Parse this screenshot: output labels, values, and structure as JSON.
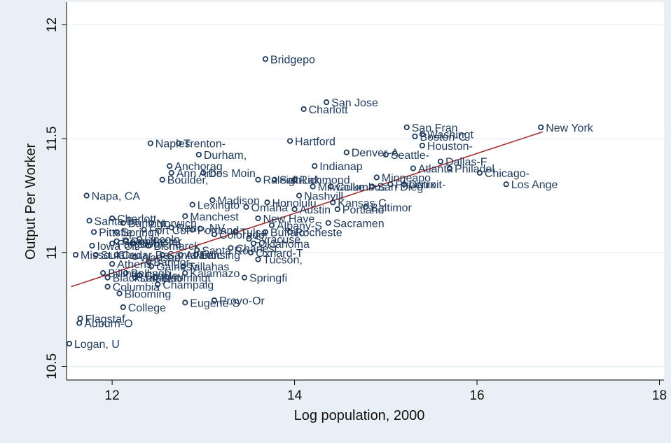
{
  "chart_data": {
    "type": "scatter",
    "title": "",
    "xlabel": "Log population, 2000",
    "ylabel": "Output Per Worker",
    "xlim": [
      11.5,
      18.05
    ],
    "ylim": [
      10.44,
      12.1
    ],
    "xticks": [
      12,
      14,
      16,
      18
    ],
    "yticks": [
      10.5,
      11,
      11.5,
      12
    ],
    "xtick_labels": [
      "12",
      "14",
      "16",
      "18"
    ],
    "ytick_labels": [
      "10.5",
      "11",
      "11.5",
      "12"
    ],
    "grid": "horizontal",
    "legend": "none",
    "colors": {
      "background": "#e9f0f5",
      "plot_area": "#ffffff",
      "grid": "#e6eef4",
      "marker": "#1f3a5c",
      "label": "#1f3a5c",
      "fit_line": "#a23131"
    },
    "fit_line": {
      "x": [
        11.55,
        16.72
      ],
      "y": [
        10.85,
        11.53
      ]
    },
    "points": [
      {
        "label": "New York",
        "x": 16.7,
        "y": 11.55
      },
      {
        "label": "Los Ange",
        "x": 16.32,
        "y": 11.3
      },
      {
        "label": "Chicago-",
        "x": 16.03,
        "y": 11.35
      },
      {
        "label": "Philadel",
        "x": 15.7,
        "y": 11.37
      },
      {
        "label": "Dallas-F",
        "x": 15.6,
        "y": 11.4
      },
      {
        "label": "Houston-",
        "x": 15.4,
        "y": 11.47
      },
      {
        "label": "Washingt",
        "x": 15.4,
        "y": 11.52
      },
      {
        "label": "Boston-C",
        "x": 15.32,
        "y": 11.51
      },
      {
        "label": "San Fran",
        "x": 15.23,
        "y": 11.55
      },
      {
        "label": "Atlanta",
        "x": 15.3,
        "y": 11.37
      },
      {
        "label": "Detroit-",
        "x": 15.2,
        "y": 11.3
      },
      {
        "label": "Phoenix",
        "x": 15.05,
        "y": 11.3
      },
      {
        "label": "Seattle-",
        "x": 15.0,
        "y": 11.43
      },
      {
        "label": "Minneapo",
        "x": 14.9,
        "y": 11.33
      },
      {
        "label": "San Dieg",
        "x": 14.85,
        "y": 11.29
      },
      {
        "label": "Denver-A",
        "x": 14.57,
        "y": 11.44
      },
      {
        "label": "Baltimor",
        "x": 14.78,
        "y": 11.2
      },
      {
        "label": "Kansas C",
        "x": 14.42,
        "y": 11.22
      },
      {
        "label": "Portland",
        "x": 14.47,
        "y": 11.19
      },
      {
        "label": "Sacramen",
        "x": 14.37,
        "y": 11.13
      },
      {
        "label": "San Jose",
        "x": 14.35,
        "y": 11.66
      },
      {
        "label": "Charlott",
        "x": 14.1,
        "y": 11.63
      },
      {
        "label": "Bridgepo",
        "x": 13.68,
        "y": 11.85
      },
      {
        "label": "Hartford",
        "x": 13.95,
        "y": 11.49
      },
      {
        "label": "Indianap",
        "x": 14.22,
        "y": 11.38
      },
      {
        "label": "Columbus",
        "x": 14.4,
        "y": 11.29
      },
      {
        "label": "Milwauke",
        "x": 14.2,
        "y": 11.29
      },
      {
        "label": "Richmond",
        "x": 14.0,
        "y": 11.32
      },
      {
        "label": "Salt Lak",
        "x": 13.78,
        "y": 11.32
      },
      {
        "label": "Nashvill",
        "x": 14.05,
        "y": 11.25
      },
      {
        "label": "Raleigh",
        "x": 13.6,
        "y": 11.32
      },
      {
        "label": "Austin",
        "x": 14.0,
        "y": 11.19
      },
      {
        "label": "Honolulu",
        "x": 13.7,
        "y": 11.22
      },
      {
        "label": "Omaha",
        "x": 13.47,
        "y": 11.2
      },
      {
        "label": "Madison",
        "x": 13.1,
        "y": 11.23
      },
      {
        "label": "New Have",
        "x": 13.6,
        "y": 11.15
      },
      {
        "label": "Albany-S",
        "x": 13.75,
        "y": 11.12
      },
      {
        "label": "Rocheste",
        "x": 13.95,
        "y": 11.09
      },
      {
        "label": "Buffalo",
        "x": 13.68,
        "y": 11.09
      },
      {
        "label": "Syracuse",
        "x": 13.5,
        "y": 11.06
      },
      {
        "label": "Tulsa",
        "x": 13.35,
        "y": 11.09
      },
      {
        "label": "Oklahoma",
        "x": 13.55,
        "y": 11.04
      },
      {
        "label": "Charlest",
        "x": 13.3,
        "y": 11.02
      },
      {
        "label": "Oxnard-T",
        "x": 13.52,
        "y": 11.0
      },
      {
        "label": "Tucson,",
        "x": 13.6,
        "y": 10.97
      },
      {
        "label": "Springfi",
        "x": 13.45,
        "y": 10.89
      },
      {
        "label": "Provo-Or",
        "x": 13.12,
        "y": 10.79
      },
      {
        "label": "Eugene-S",
        "x": 12.8,
        "y": 10.78
      },
      {
        "label": "Lansing",
        "x": 12.92,
        "y": 10.99
      },
      {
        "label": "Santa Ro",
        "x": 12.93,
        "y": 11.01
      },
      {
        "label": "Kalamazo",
        "x": 12.8,
        "y": 10.91
      },
      {
        "label": "Tallahas",
        "x": 12.78,
        "y": 10.94
      },
      {
        "label": "Champaig",
        "x": 12.5,
        "y": 10.86
      },
      {
        "label": "Bloomingt",
        "x": 12.48,
        "y": 10.89
      },
      {
        "label": "Blooming",
        "x": 12.08,
        "y": 10.82
      },
      {
        "label": "Columbia",
        "x": 11.95,
        "y": 10.85
      },
      {
        "label": "College",
        "x": 12.12,
        "y": 10.76
      },
      {
        "label": "Flagstaf",
        "x": 11.65,
        "y": 10.71
      },
      {
        "label": "Auburn-O",
        "x": 11.64,
        "y": 10.69
      },
      {
        "label": "Logan, U",
        "x": 11.53,
        "y": 10.6
      },
      {
        "label": "Napa, CA",
        "x": 11.72,
        "y": 11.25
      },
      {
        "label": "Naples",
        "x": 12.42,
        "y": 11.48
      },
      {
        "label": "Trenton-",
        "x": 12.73,
        "y": 11.48
      },
      {
        "label": "Durham,",
        "x": 12.95,
        "y": 11.43
      },
      {
        "label": "Anchorag",
        "x": 12.63,
        "y": 11.38
      },
      {
        "label": "Ann Arbo",
        "x": 12.65,
        "y": 11.35
      },
      {
        "label": "Des Moin",
        "x": 13.0,
        "y": 11.35
      },
      {
        "label": "Boulder,",
        "x": 12.55,
        "y": 11.32
      },
      {
        "label": "Lexingto",
        "x": 12.88,
        "y": 11.21
      },
      {
        "label": "Manchest",
        "x": 12.8,
        "y": 11.16
      },
      {
        "label": "Charlott",
        "x": 12.0,
        "y": 11.15
      },
      {
        "label": "Santa Ba",
        "x": 11.75,
        "y": 11.14
      },
      {
        "label": "Burlingt",
        "x": 12.12,
        "y": 11.13
      },
      {
        "label": "Norwich",
        "x": 12.43,
        "y": 11.13
      },
      {
        "label": "Pittsfie",
        "x": 11.8,
        "y": 11.09
      },
      {
        "label": "Springfi",
        "x": 12.05,
        "y": 11.09
      },
      {
        "label": "Reno, NV",
        "x": 12.65,
        "y": 11.11
      },
      {
        "label": "Fort Col",
        "x": 12.35,
        "y": 11.1
      },
      {
        "label": "Portland",
        "x": 12.88,
        "y": 11.1
      },
      {
        "label": "Colorado",
        "x": 13.12,
        "y": 11.08
      },
      {
        "label": "Lincoln",
        "x": 12.3,
        "y": 11.06
      },
      {
        "label": "Roanoke",
        "x": 12.05,
        "y": 11.05
      },
      {
        "label": "Iowa Cit",
        "x": 11.78,
        "y": 11.03
      },
      {
        "label": "Fargo",
        "x": 12.0,
        "y": 11.04
      },
      {
        "label": "Rochester",
        "x": 12.15,
        "y": 11.05
      },
      {
        "label": "Sioux Fa",
        "x": 12.22,
        "y": 11.04
      },
      {
        "label": "Bismarck",
        "x": 12.4,
        "y": 11.03
      },
      {
        "label": "Missoula",
        "x": 11.6,
        "y": 10.99
      },
      {
        "label": "St. Clou",
        "x": 11.82,
        "y": 10.99
      },
      {
        "label": "Cedar Ra",
        "x": 12.05,
        "y": 10.99
      },
      {
        "label": "Wausau",
        "x": 12.25,
        "y": 10.98
      },
      {
        "label": "Athens",
        "x": 12.0,
        "y": 10.95
      },
      {
        "label": "Santa Fe",
        "x": 12.55,
        "y": 10.99
      },
      {
        "label": "Atlantic",
        "x": 12.75,
        "y": 10.99
      },
      {
        "label": "Bangor",
        "x": 12.4,
        "y": 10.96
      },
      {
        "label": "Gainesvi",
        "x": 12.43,
        "y": 10.94
      },
      {
        "label": "Billings",
        "x": 11.9,
        "y": 10.91
      },
      {
        "label": "Bellingh",
        "x": 12.15,
        "y": 10.91
      },
      {
        "label": "Greeley",
        "x": 12.3,
        "y": 10.9
      },
      {
        "label": "Blacksbu",
        "x": 11.95,
        "y": 10.89
      },
      {
        "label": "Lafayett",
        "x": 12.25,
        "y": 10.89
      }
    ]
  }
}
